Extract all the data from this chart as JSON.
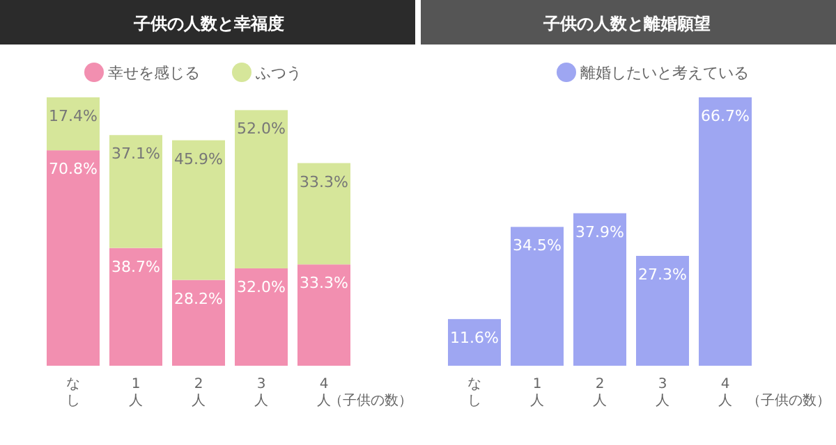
{
  "chart_data": [
    {
      "type": "bar",
      "title": "子供の人数と幸福度",
      "xlabel": "（子供の数）",
      "categories": [
        "なし",
        "1人",
        "2人",
        "3人",
        "4人"
      ],
      "stacked": true,
      "legend": "top",
      "series": [
        {
          "name": "幸せを感じる",
          "color": "#f28fb0",
          "values": [
            70.8,
            38.7,
            28.2,
            32.0,
            33.3
          ],
          "value_labels": [
            "70.8%",
            "38.7%",
            "28.2%",
            "32.0%",
            "33.3%"
          ]
        },
        {
          "name": "ふつう",
          "color": "#d6e69a",
          "values": [
            17.4,
            37.1,
            45.9,
            52.0,
            33.3
          ],
          "value_labels": [
            "17.4%",
            "37.1%",
            "45.9%",
            "52.0%",
            "33.3%"
          ]
        }
      ]
    },
    {
      "type": "bar",
      "title": "子供の人数と離婚願望",
      "xlabel": "（子供の数）",
      "categories": [
        "なし",
        "1人",
        "2人",
        "3人",
        "4人"
      ],
      "legend": "top",
      "series": [
        {
          "name": "離婚したいと考えている",
          "color": "#9ea6f2",
          "values": [
            11.6,
            34.5,
            37.9,
            27.3,
            66.7
          ],
          "value_labels": [
            "11.6%",
            "34.5%",
            "37.9%",
            "27.3%",
            "66.7%"
          ]
        }
      ]
    }
  ]
}
